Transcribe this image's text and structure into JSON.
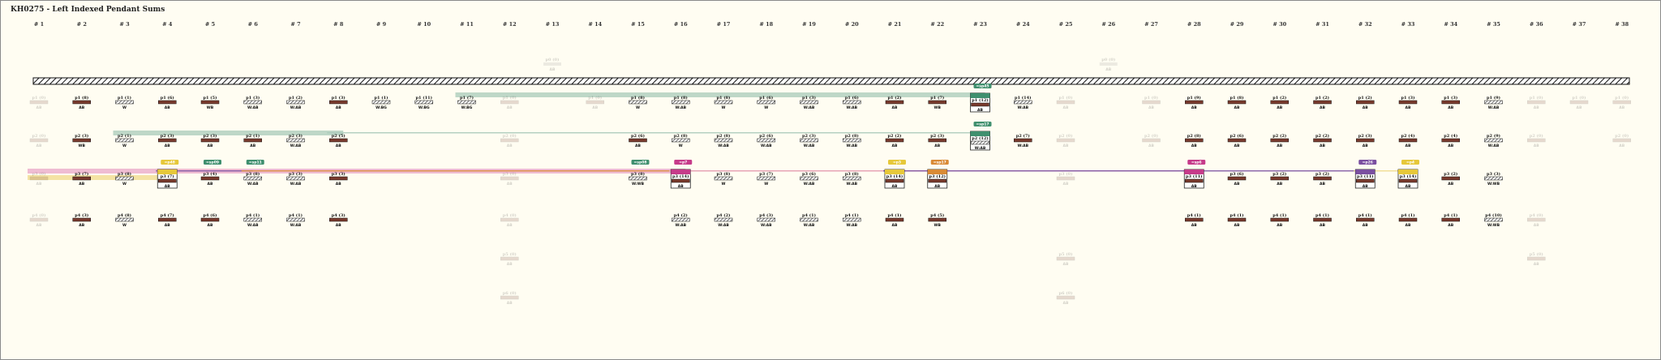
{
  "title": "KH0275 - Left Indexed Pendant Sums",
  "columns": [
    "# 1",
    "# 2",
    "# 3",
    "# 4",
    "# 5",
    "# 6",
    "# 7",
    "# 8",
    "# 9",
    "# 10",
    "# 11",
    "# 12",
    "# 13",
    "# 14",
    "# 15",
    "# 16",
    "# 17",
    "# 18",
    "# 19",
    "# 20",
    "# 21",
    "# 22",
    "# 23",
    "# 24",
    "# 25",
    "# 26",
    "# 27",
    "# 28",
    "# 29",
    "# 30",
    "# 31",
    "# 32",
    "# 33",
    "# 34",
    "# 35",
    "# 36",
    "# 37",
    "# 38"
  ],
  "colors": {
    "page_bg": "#fffdf2",
    "cord_brown": "#7a3b2e",
    "sum_green": "#3f8f6e",
    "sum_pink": "#c63b8a",
    "sum_purple": "#7a4fa0",
    "sum_yellow": "#e6c83a",
    "sum_orange": "#d98a36",
    "band_green": "#a8c9b8",
    "band_pink": "#e9a6c7",
    "band_yellow": "#f0d98a"
  },
  "rows": [
    {
      "pendants": [
        {
          "col": 0,
          "code": "p1 (0)",
          "color": "AB",
          "ghost": true
        },
        {
          "col": 1,
          "code": "p1 (8)",
          "color": "AB"
        },
        {
          "col": 2,
          "code": "p1 (1)",
          "color": "W",
          "striped": true
        },
        {
          "col": 3,
          "code": "p1 (6)",
          "color": "AB"
        },
        {
          "col": 4,
          "code": "p1 (5)",
          "color": "WB"
        },
        {
          "col": 5,
          "code": "p1 (3)",
          "color": "W:AB",
          "striped": true
        },
        {
          "col": 6,
          "code": "p1 (2)",
          "color": "W:AB",
          "striped": true
        },
        {
          "col": 7,
          "code": "p1 (3)",
          "color": "AB"
        },
        {
          "col": 8,
          "code": "p1 (1)",
          "color": "W:BG",
          "striped": true
        },
        {
          "col": 9,
          "code": "p1 (11)",
          "color": "W:BG",
          "striped": true
        },
        {
          "col": 10,
          "code": "p1 (7)",
          "color": "W:BG",
          "striped": true
        },
        {
          "col": 11,
          "code": "p1 (0)",
          "color": "AB",
          "ghost": true
        },
        {
          "col": 13,
          "code": "p1 (0)",
          "color": "AB",
          "ghost": true
        },
        {
          "col": 14,
          "code": "p1 (8)",
          "color": "W",
          "striped": true
        },
        {
          "col": 15,
          "code": "p1 (8)",
          "color": "W:AB",
          "striped": true
        },
        {
          "col": 16,
          "code": "p1 (8)",
          "color": "W",
          "striped": true
        },
        {
          "col": 17,
          "code": "p1 (6)",
          "color": "W",
          "striped": true
        },
        {
          "col": 18,
          "code": "p1 (3)",
          "color": "W:AB",
          "striped": true
        },
        {
          "col": 19,
          "code": "p1 (6)",
          "color": "W:AB",
          "striped": true
        },
        {
          "col": 20,
          "code": "p1 (2)",
          "color": "AB"
        },
        {
          "col": 21,
          "code": "p1 (7)",
          "color": "WB"
        },
        {
          "col": 22,
          "code": "p1 (12)",
          "color": "AB",
          "sum": "green",
          "tag": "=sp45"
        },
        {
          "col": 23,
          "code": "p1 (14)",
          "color": "W:AB",
          "striped": true
        },
        {
          "col": 24,
          "code": "p1 (0)",
          "color": "AB",
          "ghost": true
        },
        {
          "col": 26,
          "code": "p1 (0)",
          "color": "AB",
          "ghost": true
        },
        {
          "col": 27,
          "code": "p1 (9)",
          "color": "AB"
        },
        {
          "col": 28,
          "code": "p1 (8)",
          "color": "AB"
        },
        {
          "col": 29,
          "code": "p1 (2)",
          "color": "AB"
        },
        {
          "col": 30,
          "code": "p1 (2)",
          "color": "AB"
        },
        {
          "col": 31,
          "code": "p1 (2)",
          "color": "AB"
        },
        {
          "col": 32,
          "code": "p1 (3)",
          "color": "AB"
        },
        {
          "col": 33,
          "code": "p1 (3)",
          "color": "AB"
        },
        {
          "col": 34,
          "code": "p1 (9)",
          "color": "W:AB",
          "striped": true
        },
        {
          "col": 35,
          "code": "p1 (0)",
          "color": "AB",
          "ghost": true
        },
        {
          "col": 36,
          "code": "p1 (0)",
          "color": "AB",
          "ghost": true
        },
        {
          "col": 37,
          "code": "p1 (0)",
          "color": "AB",
          "ghost": true
        }
      ]
    },
    {
      "pendants": [
        {
          "col": 0,
          "code": "p2 (0)",
          "color": "AB",
          "ghost": true
        },
        {
          "col": 1,
          "code": "p2 (3)",
          "color": "WB"
        },
        {
          "col": 2,
          "code": "p2 (1)",
          "color": "W",
          "striped": true
        },
        {
          "col": 3,
          "code": "p2 (3)",
          "color": "AB"
        },
        {
          "col": 4,
          "code": "p2 (3)",
          "color": "AB"
        },
        {
          "col": 5,
          "code": "p2 (1)",
          "color": "AB"
        },
        {
          "col": 6,
          "code": "p2 (3)",
          "color": "W:AB",
          "striped": true
        },
        {
          "col": 7,
          "code": "p2 (5)",
          "color": "AB"
        },
        {
          "col": 11,
          "code": "p2 (0)",
          "color": "AB",
          "ghost": true
        },
        {
          "col": 14,
          "code": "p2 (6)",
          "color": "AB"
        },
        {
          "col": 15,
          "code": "p2 (8)",
          "color": "W",
          "striped": true
        },
        {
          "col": 16,
          "code": "p2 (8)",
          "color": "W:AB",
          "striped": true
        },
        {
          "col": 17,
          "code": "p2 (6)",
          "color": "W:AB",
          "striped": true
        },
        {
          "col": 18,
          "code": "p2 (3)",
          "color": "W:AB",
          "striped": true
        },
        {
          "col": 19,
          "code": "p2 (8)",
          "color": "W:AB",
          "striped": true
        },
        {
          "col": 20,
          "code": "p2 (2)",
          "color": "AB"
        },
        {
          "col": 21,
          "code": "p2 (3)",
          "color": "AB"
        },
        {
          "col": 22,
          "code": "p2 (12)",
          "color": "W:AB",
          "striped": true,
          "sum": "green",
          "tag": "=sp17"
        },
        {
          "col": 23,
          "code": "p2 (7)",
          "color": "W:AB"
        },
        {
          "col": 24,
          "code": "p2 (0)",
          "color": "AB",
          "ghost": true
        },
        {
          "col": 26,
          "code": "p2 (0)",
          "color": "AB",
          "ghost": true
        },
        {
          "col": 27,
          "code": "p2 (8)",
          "color": "AB"
        },
        {
          "col": 28,
          "code": "p2 (6)",
          "color": "AB"
        },
        {
          "col": 29,
          "code": "p2 (2)",
          "color": "AB"
        },
        {
          "col": 30,
          "code": "p2 (2)",
          "color": "AB"
        },
        {
          "col": 31,
          "code": "p2 (3)",
          "color": "AB"
        },
        {
          "col": 32,
          "code": "p2 (4)",
          "color": "AB"
        },
        {
          "col": 33,
          "code": "p2 (4)",
          "color": "AB"
        },
        {
          "col": 34,
          "code": "p2 (9)",
          "color": "W:AB",
          "striped": true
        },
        {
          "col": 35,
          "code": "p2 (0)",
          "color": "AB",
          "ghost": true
        },
        {
          "col": 37,
          "code": "p2 (0)",
          "color": "AB",
          "ghost": true
        }
      ]
    },
    {
      "pendants": [
        {
          "col": 0,
          "code": "p3 (0)",
          "color": "AB",
          "ghost": true
        },
        {
          "col": 1,
          "code": "p3 (7)",
          "color": "AB"
        },
        {
          "col": 2,
          "code": "p3 (8)",
          "color": "W",
          "striped": true
        },
        {
          "col": 3,
          "code": "p3 (7)",
          "color": "AB",
          "sum": "yellow",
          "tag": "=p48"
        },
        {
          "col": 4,
          "code": "p3 (4)",
          "color": "AB",
          "tag": "=sp09"
        },
        {
          "col": 5,
          "code": "p3 (8)",
          "color": "W:AB",
          "striped": true,
          "tag": "=sp11"
        },
        {
          "col": 6,
          "code": "p3 (3)",
          "color": "W:AB",
          "striped": true
        },
        {
          "col": 7,
          "code": "p3 (3)",
          "color": "AB"
        },
        {
          "col": 11,
          "code": "p3 (0)",
          "color": "AB",
          "ghost": true
        },
        {
          "col": 14,
          "code": "p3 (8)",
          "color": "W:WB",
          "striped": true,
          "tag": "=sp08"
        },
        {
          "col": 15,
          "code": "p3 (14)",
          "color": "AB",
          "sum": "pink",
          "tag": "=p7"
        },
        {
          "col": 16,
          "code": "p3 (8)",
          "color": "W",
          "striped": true
        },
        {
          "col": 17,
          "code": "p3 (7)",
          "color": "W",
          "striped": true
        },
        {
          "col": 18,
          "code": "p3 (6)",
          "color": "W:AB",
          "striped": true
        },
        {
          "col": 19,
          "code": "p3 (8)",
          "color": "W:AB",
          "striped": true
        },
        {
          "col": 20,
          "code": "p3 (14)",
          "color": "AB",
          "sum": "yellow",
          "tag": "=p3"
        },
        {
          "col": 21,
          "code": "p3 (12)",
          "color": "AB",
          "sum": "orange",
          "tag": "=sp17"
        },
        {
          "col": 24,
          "code": "p3 (0)",
          "color": "AB",
          "ghost": true
        },
        {
          "col": 27,
          "code": "p3 (11)",
          "color": "AB",
          "sum": "pink",
          "tag": "=sp6"
        },
        {
          "col": 28,
          "code": "p3 (6)",
          "color": "AB"
        },
        {
          "col": 29,
          "code": "p3 (2)",
          "color": "AB"
        },
        {
          "col": 30,
          "code": "p3 (2)",
          "color": "AB"
        },
        {
          "col": 31,
          "code": "p3 (11)",
          "color": "AB",
          "sum": "purple",
          "tag": "=p26"
        },
        {
          "col": 32,
          "code": "p3 (14)",
          "color": "AB",
          "sum": "yellow",
          "tag": "=p4"
        },
        {
          "col": 33,
          "code": "p3 (2)",
          "color": "AB"
        },
        {
          "col": 34,
          "code": "p3 (3)",
          "color": "W:WB",
          "striped": true
        }
      ]
    },
    {
      "pendants": [
        {
          "col": 0,
          "code": "p4 (0)",
          "color": "AB",
          "ghost": true
        },
        {
          "col": 1,
          "code": "p4 (3)",
          "color": "AB"
        },
        {
          "col": 2,
          "code": "p4 (8)",
          "color": "W",
          "striped": true
        },
        {
          "col": 3,
          "code": "p4 (7)",
          "color": "AB"
        },
        {
          "col": 4,
          "code": "p4 (6)",
          "color": "AB"
        },
        {
          "col": 5,
          "code": "p4 (1)",
          "color": "W:AB",
          "striped": true
        },
        {
          "col": 6,
          "code": "p4 (1)",
          "color": "W:AB",
          "striped": true
        },
        {
          "col": 7,
          "code": "p4 (3)",
          "color": "AB"
        },
        {
          "col": 11,
          "code": "p4 (0)",
          "color": "AB",
          "ghost": true
        },
        {
          "col": 15,
          "code": "p4 (2)",
          "color": "W:AB",
          "striped": true
        },
        {
          "col": 16,
          "code": "p4 (2)",
          "color": "W:AB",
          "striped": true
        },
        {
          "col": 17,
          "code": "p4 (3)",
          "color": "W:AB",
          "striped": true
        },
        {
          "col": 18,
          "code": "p4 (1)",
          "color": "W:AB",
          "striped": true
        },
        {
          "col": 19,
          "code": "p4 (1)",
          "color": "W:AB",
          "striped": true
        },
        {
          "col": 20,
          "code": "p4 (1)",
          "color": "AB"
        },
        {
          "col": 21,
          "code": "p4 (5)",
          "color": "WB"
        },
        {
          "col": 27,
          "code": "p4 (1)",
          "color": "AB"
        },
        {
          "col": 28,
          "code": "p4 (1)",
          "color": "AB"
        },
        {
          "col": 29,
          "code": "p4 (1)",
          "color": "AB"
        },
        {
          "col": 30,
          "code": "p4 (1)",
          "color": "AB"
        },
        {
          "col": 31,
          "code": "p4 (1)",
          "color": "AB"
        },
        {
          "col": 32,
          "code": "p4 (1)",
          "color": "AB"
        },
        {
          "col": 33,
          "code": "p4 (1)",
          "color": "AB"
        },
        {
          "col": 34,
          "code": "p4 (10)",
          "color": "W:WB",
          "striped": true
        },
        {
          "col": 35,
          "code": "p4 (0)",
          "color": "AB",
          "ghost": true
        }
      ]
    },
    {
      "pendants": [
        {
          "col": 11,
          "code": "p5 (0)",
          "color": "AB",
          "ghost": true
        },
        {
          "col": 24,
          "code": "p5 (0)",
          "color": "AB",
          "ghost": true
        },
        {
          "col": 35,
          "code": "p5 (0)",
          "color": "AB",
          "ghost": true
        }
      ]
    },
    {
      "pendants": [
        {
          "col": 11,
          "code": "p6 (0)",
          "color": "AB",
          "ghost": true
        },
        {
          "col": 24,
          "code": "p6 (0)",
          "color": "AB",
          "ghost": true
        }
      ]
    }
  ],
  "top_ghosts": [
    {
      "col": 12,
      "code": "p0 (0)",
      "color": "AB"
    },
    {
      "col": 25,
      "code": "p0 (0)",
      "color": "AB"
    }
  ],
  "bands": [
    {
      "row": 0,
      "fromCol": 10,
      "toCol": 22,
      "color": "green"
    },
    {
      "row": 1,
      "fromCol": 2,
      "toCol": 7,
      "color": "green"
    },
    {
      "row": 1,
      "fromCol": 7,
      "toCol": 22,
      "color": "green",
      "thin": true
    },
    {
      "row": 2,
      "fromCol": 0,
      "toCol": 15,
      "color": "pink"
    },
    {
      "row": 2,
      "fromCol": 3,
      "toCol": 5,
      "color": "purple",
      "thin": true
    },
    {
      "row": 2,
      "fromCol": 5,
      "toCol": 21,
      "color": "orange",
      "thin": true
    },
    {
      "row": 2,
      "fromCol": 0,
      "toCol": 3,
      "color": "yellow",
      "under": true
    },
    {
      "row": 2,
      "fromCol": 15,
      "toCol": 27,
      "color": "pink",
      "thin": true
    },
    {
      "row": 2,
      "fromCol": 20,
      "toCol": 31,
      "color": "purple",
      "thin": true
    },
    {
      "row": 2,
      "fromCol": 31,
      "toCol": 32,
      "color": "yellow",
      "thin": true
    }
  ]
}
